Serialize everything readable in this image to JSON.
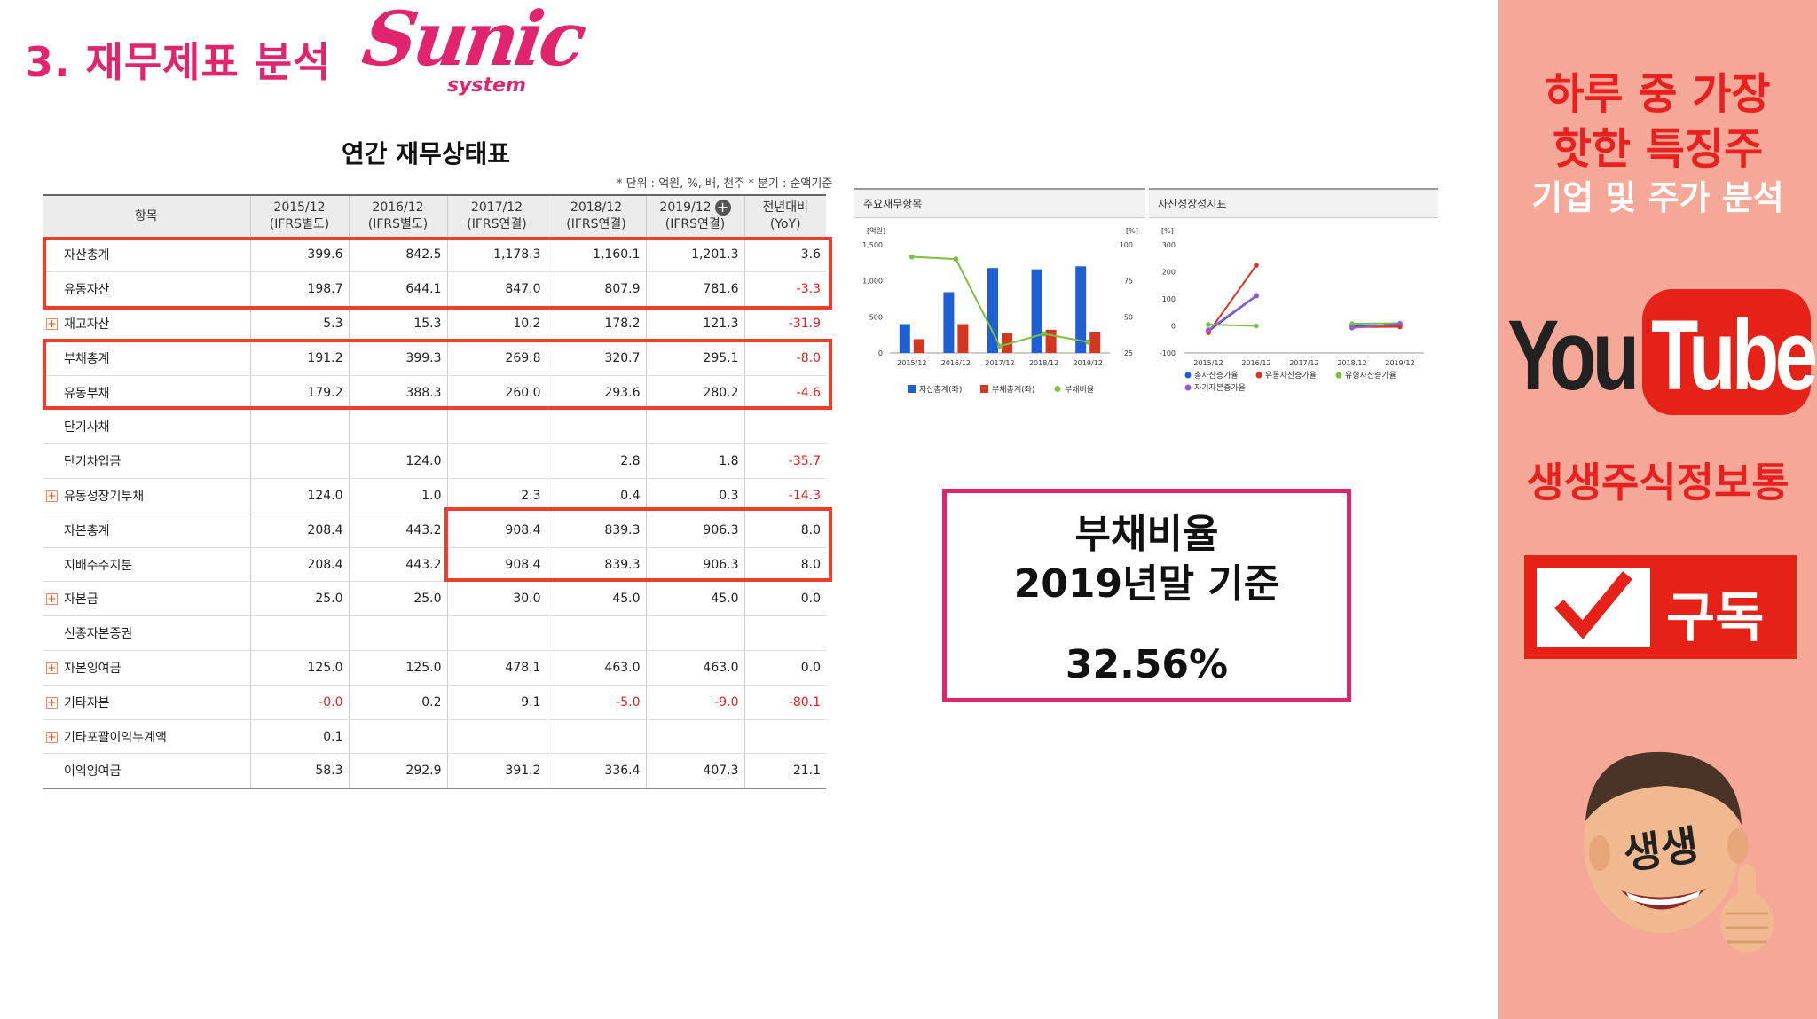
{
  "header": {
    "title": "3. 재무제표 분석",
    "logo_word": "Sunic",
    "logo_sub": "system"
  },
  "table": {
    "title": "연간 재무상태표",
    "unit_note": "* 단위 : 억원, %, 배, 천주    * 분기 : 순액기준",
    "columns": [
      {
        "line1": "항목",
        "line2": ""
      },
      {
        "line1": "2015/12",
        "line2": "(IFRS별도)"
      },
      {
        "line1": "2016/12",
        "line2": "(IFRS별도)"
      },
      {
        "line1": "2017/12",
        "line2": "(IFRS연결)"
      },
      {
        "line1": "2018/12",
        "line2": "(IFRS연결)"
      },
      {
        "line1": "2019/12",
        "line2": "(IFRS연결)"
      },
      {
        "line1": "전년대비",
        "line2": "(YoY)"
      }
    ],
    "rows": [
      {
        "label": "자산총계",
        "plus": false,
        "values": [
          "399.6",
          "842.5",
          "1,178.3",
          "1,160.1",
          "1,201.3",
          "3.6"
        ]
      },
      {
        "label": "유동자산",
        "plus": false,
        "values": [
          "198.7",
          "644.1",
          "847.0",
          "807.9",
          "781.6",
          "-3.3"
        ]
      },
      {
        "label": "재고자산",
        "plus": true,
        "values": [
          "5.3",
          "15.3",
          "10.2",
          "178.2",
          "121.3",
          "-31.9"
        ]
      },
      {
        "label": "부채총계",
        "plus": false,
        "values": [
          "191.2",
          "399.3",
          "269.8",
          "320.7",
          "295.1",
          "-8.0"
        ]
      },
      {
        "label": "유동부채",
        "plus": false,
        "values": [
          "179.2",
          "388.3",
          "260.0",
          "293.6",
          "280.2",
          "-4.6"
        ]
      },
      {
        "label": "단기사채",
        "plus": false,
        "values": [
          "",
          "",
          "",
          "",
          "",
          ""
        ]
      },
      {
        "label": "단기차입금",
        "plus": false,
        "values": [
          "",
          "124.0",
          "",
          "2.8",
          "1.8",
          "-35.7"
        ]
      },
      {
        "label": "유동성장기부채",
        "plus": true,
        "values": [
          "124.0",
          "1.0",
          "2.3",
          "0.4",
          "0.3",
          "-14.3"
        ]
      },
      {
        "label": "자본총계",
        "plus": false,
        "values": [
          "208.4",
          "443.2",
          "908.4",
          "839.3",
          "906.3",
          "8.0"
        ]
      },
      {
        "label": "지배주주지분",
        "plus": false,
        "values": [
          "208.4",
          "443.2",
          "908.4",
          "839.3",
          "906.3",
          "8.0"
        ]
      },
      {
        "label": "자본금",
        "plus": true,
        "values": [
          "25.0",
          "25.0",
          "30.0",
          "45.0",
          "45.0",
          "0.0"
        ]
      },
      {
        "label": "신종자본증권",
        "plus": false,
        "values": [
          "",
          "",
          "",
          "",
          "",
          ""
        ]
      },
      {
        "label": "자본잉여금",
        "plus": true,
        "values": [
          "125.0",
          "125.0",
          "478.1",
          "463.0",
          "463.0",
          "0.0"
        ]
      },
      {
        "label": "기타자본",
        "plus": true,
        "values": [
          "-0.0",
          "0.2",
          "9.1",
          "-5.0",
          "-9.0",
          "-80.1"
        ]
      },
      {
        "label": "기타포괄이익누계액",
        "plus": true,
        "values": [
          "0.1",
          "",
          "",
          "",
          "",
          ""
        ]
      },
      {
        "label": "이익잉여금",
        "plus": false,
        "values": [
          "58.3",
          "292.9",
          "391.2",
          "336.4",
          "407.3",
          "21.1"
        ]
      }
    ]
  },
  "chart_data": [
    {
      "type": "bar",
      "title": "주요재무항목",
      "categories": [
        "2015/12",
        "2016/12",
        "2017/12",
        "2018/12",
        "2019/12"
      ],
      "y_left_label": "[억원]",
      "y_right_label": "[%]",
      "ylim_left": [
        0,
        1500
      ],
      "ylim_right": [
        25,
        100
      ],
      "yticks_left": [
        "0",
        "500",
        "1,000",
        "1,500"
      ],
      "yticks_right": [
        "25",
        "50",
        "75",
        "100"
      ],
      "series": [
        {
          "name": "자산총계(좌)",
          "kind": "bar",
          "axis": "left",
          "color": "#1f5fd6",
          "values": [
            399.6,
            842.5,
            1178.3,
            1160.1,
            1201.3
          ]
        },
        {
          "name": "부채총계(좌)",
          "kind": "bar",
          "axis": "left",
          "color": "#d6361f",
          "values": [
            191.2,
            399.3,
            269.8,
            320.7,
            295.1
          ]
        },
        {
          "name": "부채비율",
          "kind": "line",
          "axis": "right",
          "color": "#7bc043",
          "values": [
            91.7,
            90.1,
            29.7,
            38.2,
            32.6
          ]
        }
      ],
      "legend": "bottom"
    },
    {
      "type": "line",
      "title": "자산성장성지표",
      "categories": [
        "2015/12",
        "2016/12",
        "2017/12",
        "2018/12",
        "2019/12"
      ],
      "y_label": "[%]",
      "ylim": [
        -100,
        300
      ],
      "yticks": [
        "-100",
        "0",
        "100",
        "200",
        "300"
      ],
      "series": [
        {
          "name": "총자산증가율",
          "color": "#1f5fd6",
          "values": [
            -20,
            110.8,
            null,
            -1.5,
            3.6
          ]
        },
        {
          "name": "유동자산증가율",
          "color": "#d6361f",
          "values": [
            -25,
            224.2,
            null,
            -4.6,
            -3.3
          ]
        },
        {
          "name": "유형자산증가율",
          "color": "#7bc043",
          "values": [
            5,
            0,
            null,
            8,
            10
          ]
        },
        {
          "name": "자기자본증가율",
          "color": "#9b59d0",
          "values": [
            -15,
            112.7,
            null,
            -7.6,
            8.0
          ]
        }
      ],
      "legend": "bottom"
    }
  ],
  "ratio_box": {
    "line1": "부채비율",
    "line2": "2019년말 기준",
    "value": "32.56%"
  },
  "sidebar": {
    "line1": "하루 중 가장",
    "line2": "핫한 특징주",
    "line3": "기업 및 주가 분석",
    "yt_you": "You",
    "yt_tube": "Tube",
    "channel": "생생주식정보통",
    "subscribe": "구독",
    "avatar_text": "생생",
    "accent": "#e8201f",
    "panel_bg": "#f6a898"
  }
}
